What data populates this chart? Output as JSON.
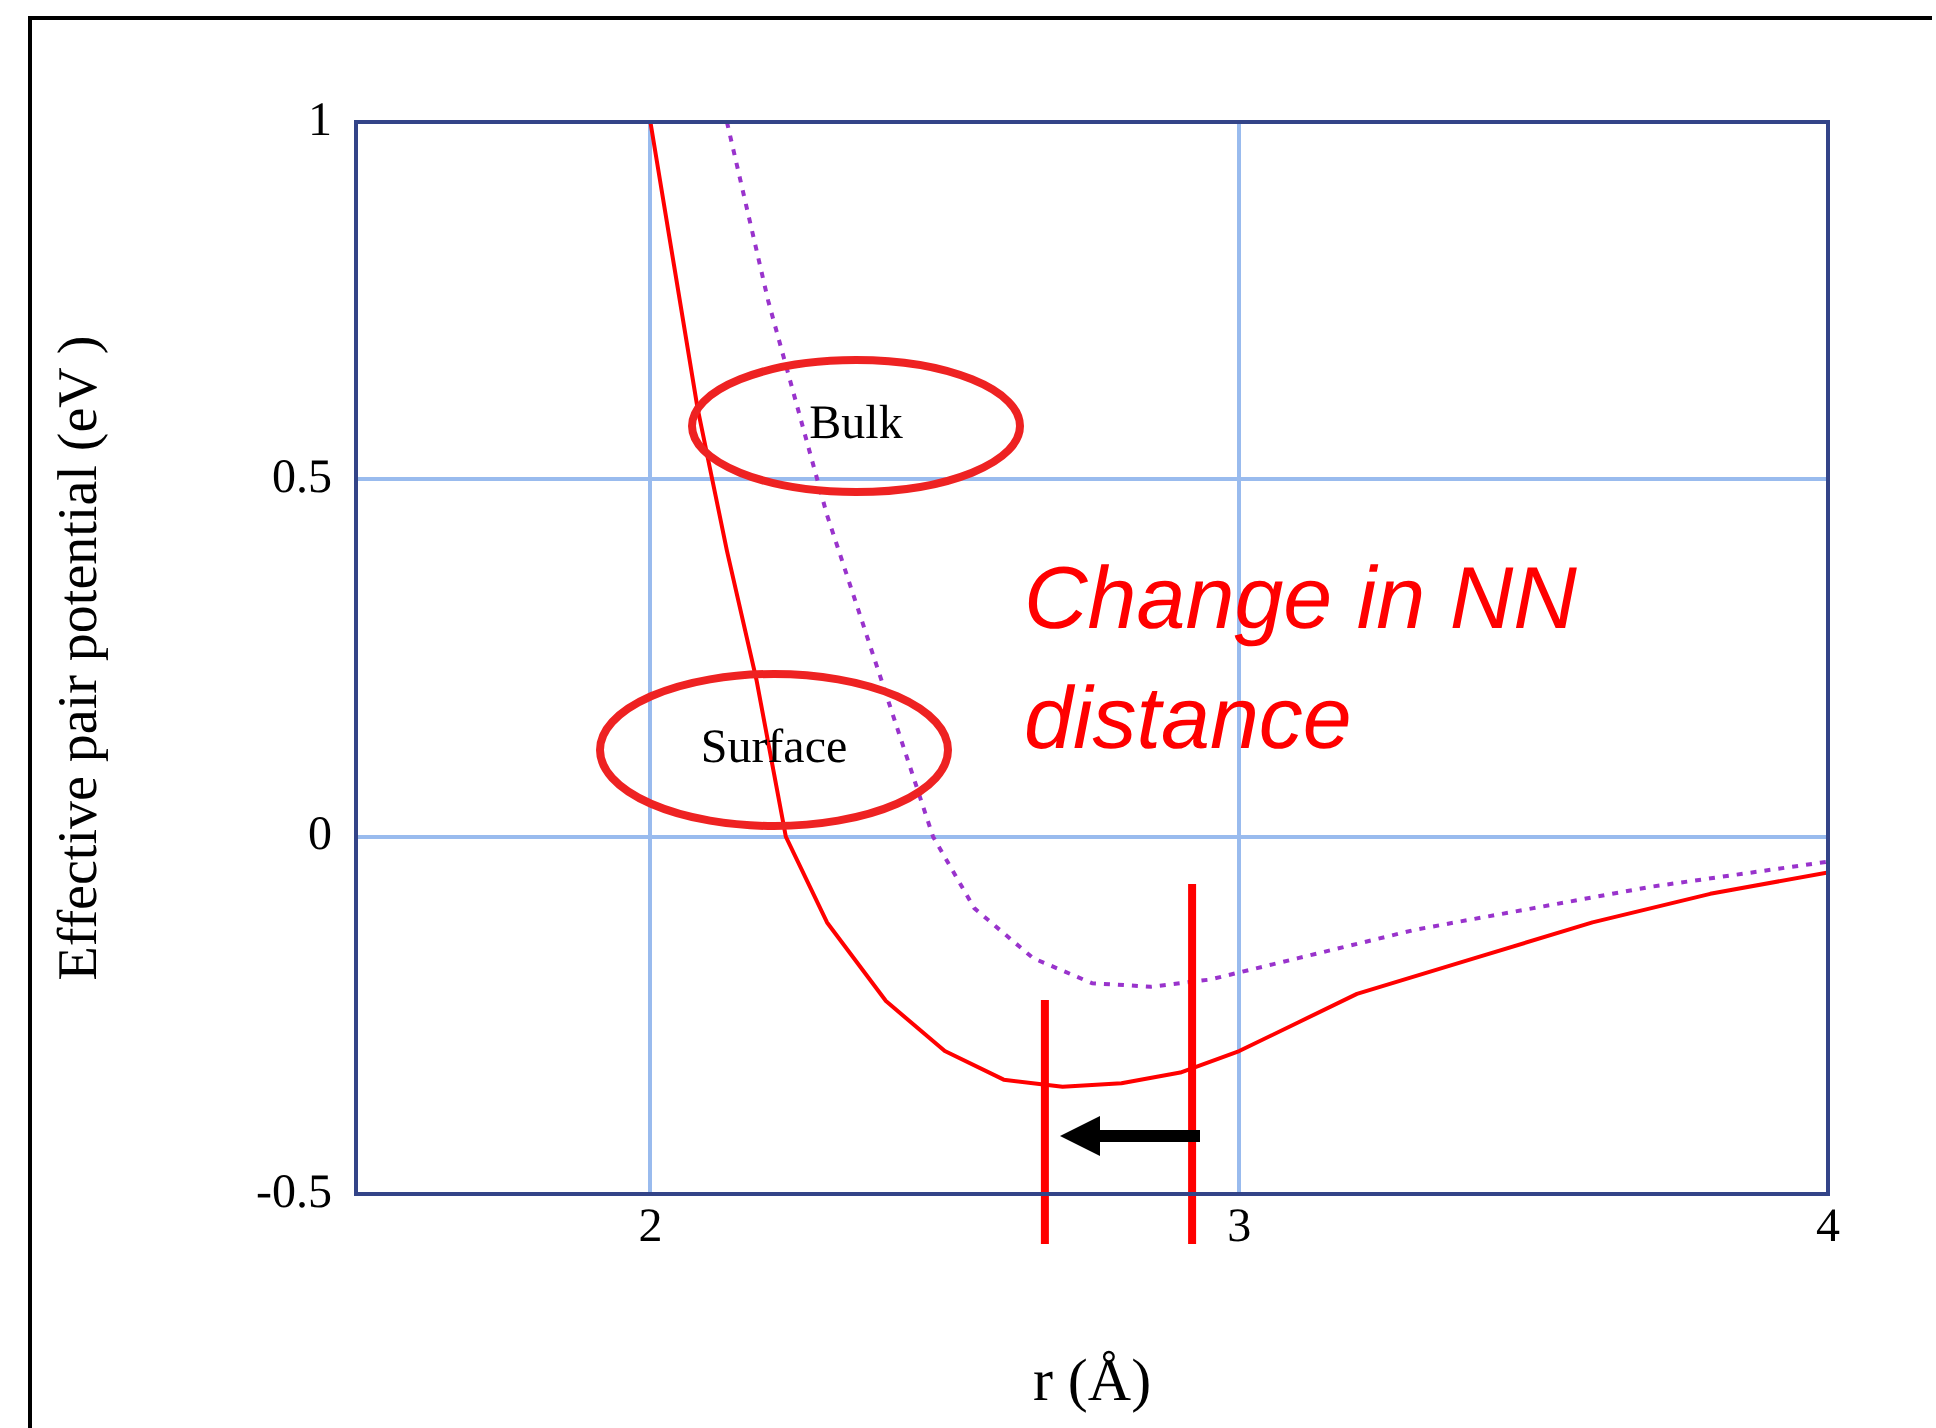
{
  "chart_data": {
    "type": "line",
    "xlabel": "r (Å)",
    "ylabel": "Effective pair potential (eV )",
    "xlim": [
      1.5,
      4
    ],
    "xticks": [
      2,
      3,
      4
    ],
    "ylim": [
      -0.5,
      1
    ],
    "yticks": [
      -0.5,
      0,
      0.5,
      1
    ],
    "grid": true,
    "legend": false,
    "marker": "none",
    "series": [
      {
        "color": "#ff0000",
        "line_style": "solid",
        "x": [
          2.0,
          2.04,
          2.08,
          2.13,
          2.18,
          2.23,
          2.3,
          2.4,
          2.5,
          2.6,
          2.7,
          2.8,
          2.9,
          3.0,
          3.1,
          3.2,
          3.4,
          3.6,
          3.8,
          4.0
        ],
        "values": [
          1.0,
          0.8,
          0.6,
          0.4,
          0.22,
          0.0,
          -0.12,
          -0.23,
          -0.3,
          -0.34,
          -0.35,
          -0.345,
          -0.33,
          -0.3,
          -0.26,
          -0.22,
          -0.17,
          -0.12,
          -0.08,
          -0.05
        ]
      },
      {
        "color": "#9933cc",
        "line_style": "dotted",
        "x": [
          2.13,
          2.2,
          2.3,
          2.4,
          2.48,
          2.55,
          2.65,
          2.75,
          2.85,
          2.95,
          3.1,
          3.3,
          3.5,
          3.7,
          4.0
        ],
        "values": [
          1.0,
          0.75,
          0.45,
          0.2,
          0.0,
          -0.1,
          -0.17,
          -0.205,
          -0.21,
          -0.2,
          -0.17,
          -0.13,
          -0.1,
          -0.07,
          -0.035
        ]
      }
    ],
    "ref_lines": [
      {
        "axis": "x",
        "value": 2.67,
        "color": "#ff0000"
      },
      {
        "axis": "x",
        "value": 2.92,
        "color": "#ff0000"
      }
    ],
    "annotations": [
      "Bulk",
      "Surface",
      "Change in NN distance"
    ]
  }
}
